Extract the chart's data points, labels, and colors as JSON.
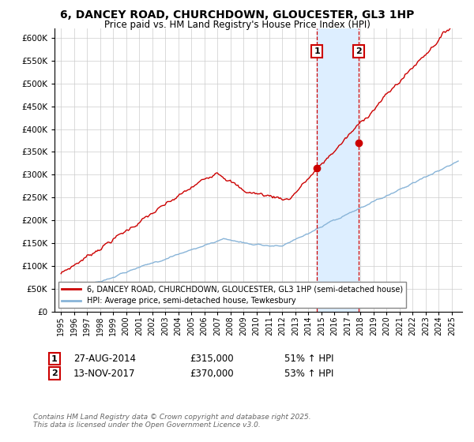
{
  "title": "6, DANCEY ROAD, CHURCHDOWN, GLOUCESTER, GL3 1HP",
  "subtitle": "Price paid vs. HM Land Registry's House Price Index (HPI)",
  "ylim": [
    0,
    620000
  ],
  "yticks": [
    0,
    50000,
    100000,
    150000,
    200000,
    250000,
    300000,
    350000,
    400000,
    450000,
    500000,
    550000,
    600000
  ],
  "ytick_labels": [
    "£0",
    "£50K",
    "£100K",
    "£150K",
    "£200K",
    "£250K",
    "£300K",
    "£350K",
    "£400K",
    "£450K",
    "£500K",
    "£550K",
    "£600K"
  ],
  "xlim_start": 1994.5,
  "xlim_end": 2025.8,
  "xtick_start": 1995,
  "xtick_end": 2025,
  "sale1_year": 2014.65,
  "sale1_price": 315000,
  "sale1_label": "27-AUG-2014",
  "sale1_amount": "£315,000",
  "sale1_hpi": "51% ↑ HPI",
  "sale2_year": 2017.87,
  "sale2_price": 370000,
  "sale2_label": "13-NOV-2017",
  "sale2_amount": "£370,000",
  "sale2_hpi": "53% ↑ HPI",
  "legend1": "6, DANCEY ROAD, CHURCHDOWN, GLOUCESTER, GL3 1HP (semi-detached house)",
  "legend2": "HPI: Average price, semi-detached house, Tewkesbury",
  "footnote": "Contains HM Land Registry data © Crown copyright and database right 2025.\nThis data is licensed under the Open Government Licence v3.0.",
  "property_color": "#cc0000",
  "hpi_color": "#88b4d8",
  "shade_color": "#ddeeff",
  "grid_color": "#cccccc",
  "background_color": "#ffffff"
}
